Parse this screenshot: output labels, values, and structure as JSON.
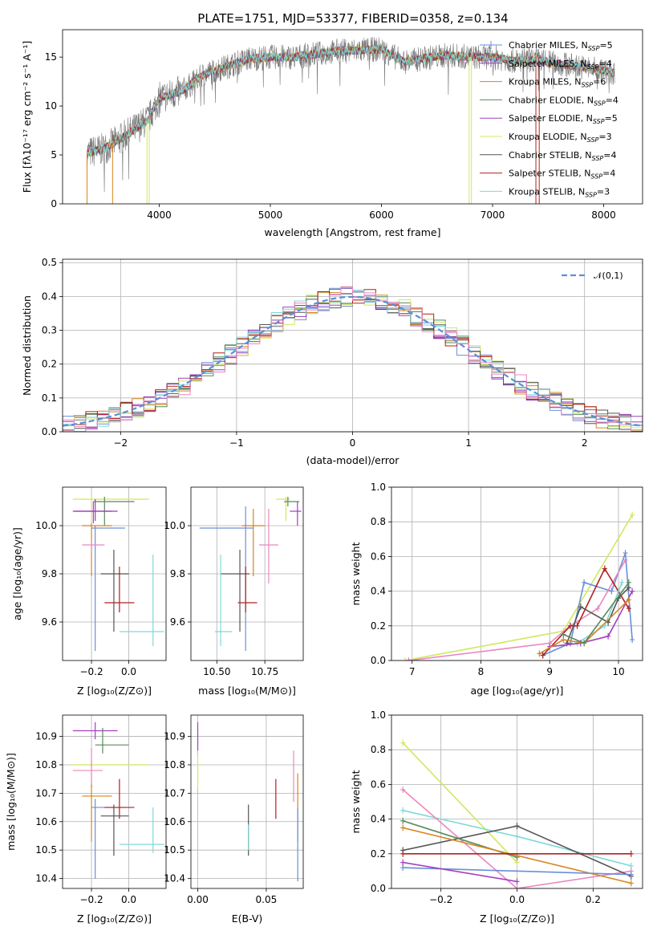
{
  "page_title": "PLATE=1751, MJD=53377, FIBERID=0358, z=0.134",
  "colors": {
    "Chabrier MILES": "#6a8fd8",
    "Salpeter MILES": "#9a3ab8",
    "Kroupa MILES": "#d88520",
    "Chabrier ELODIE": "#5a8a5a",
    "Salpeter ELODIE": "#a040c0",
    "Kroupa ELODIE": "#d0e860",
    "Chabrier STELIB": "#555555",
    "Salpeter STELIB": "#b02020",
    "Kroupa STELIB": "#80d8d8",
    "extra_pink": "#e888c0",
    "normal": "#5b8fd8"
  },
  "chart_data": [
    {
      "id": "spectrum",
      "type": "line",
      "title": "",
      "xlabel": "wavelength [Angstrom, rest frame]",
      "ylabel": "Flux [fλ10⁻¹⁷ erg cm⁻² s⁻¹ A⁻¹]",
      "xlim": [
        3130,
        8350
      ],
      "ylim": [
        0,
        17.8
      ],
      "xticks": [
        4000,
        5000,
        6000,
        7000,
        8000
      ],
      "yticks": [
        0,
        5,
        10,
        15
      ],
      "grid": false,
      "legend_position": "top-right",
      "continuum": {
        "x": [
          3350,
          3500,
          3700,
          3900,
          4000,
          4200,
          4400,
          4600,
          4800,
          5000,
          5200,
          5400,
          5600,
          5800,
          6000,
          6200,
          6400,
          6600,
          6800,
          7000,
          7200,
          7400,
          7600,
          7800,
          8000,
          8100
        ],
        "y": [
          5.2,
          5.6,
          7.0,
          8.6,
          10.8,
          11.5,
          13.2,
          14.0,
          14.8,
          15.0,
          15.0,
          15.3,
          15.6,
          15.7,
          15.8,
          14.5,
          14.9,
          15.2,
          15.0,
          15.0,
          14.6,
          14.7,
          14.3,
          14.0,
          13.6,
          13.4
        ]
      },
      "series": [
        {
          "name": "Chabrier MILES, N$_{SSP}$=5",
          "label_main": "Chabrier MILES, N",
          "sub": "SSP",
          "suffix": "=5",
          "key": "Chabrier MILES",
          "marker": "+"
        },
        {
          "name": "Salpeter MILES, N$_{SSP}$=4",
          "label_main": "Salpeter MILES, N",
          "sub": "SSP",
          "suffix": "=4",
          "key": "Salpeter MILES",
          "marker": "+"
        },
        {
          "name": "Kroupa MILES, N$_{SSP}$=6",
          "label_main": "Kroupa MILES, N",
          "sub": "SSP",
          "suffix": "=6",
          "key": "Kroupa MILES",
          "marker": ""
        },
        {
          "name": "Chabrier ELODIE, N$_{SSP}$=4",
          "label_main": "Chabrier ELODIE, N",
          "sub": "SSP",
          "suffix": "=4",
          "key": "Chabrier ELODIE",
          "marker": ""
        },
        {
          "name": "Salpeter ELODIE, N$_{SSP}$=5",
          "label_main": "Salpeter ELODIE, N",
          "sub": "SSP",
          "suffix": "=5",
          "key": "Salpeter ELODIE",
          "marker": ""
        },
        {
          "name": "Kroupa ELODIE, N$_{SSP}$=3",
          "label_main": "Kroupa ELODIE, N",
          "sub": "SSP",
          "suffix": "=3",
          "key": "Kroupa ELODIE",
          "marker": ""
        },
        {
          "name": "Chabrier STELIB, N$_{SSP}$=4",
          "label_main": "Chabrier STELIB, N",
          "sub": "SSP",
          "suffix": "=4",
          "key": "Chabrier STELIB",
          "marker": ""
        },
        {
          "name": "Salpeter STELIB, N$_{SSP}$=4",
          "label_main": "Salpeter STELIB, N",
          "sub": "SSP",
          "suffix": "=4",
          "key": "Salpeter STELIB",
          "marker": ""
        },
        {
          "name": "Kroupa STELIB, N$_{SSP}$=3",
          "label_main": "Kroupa STELIB, N",
          "sub": "SSP",
          "suffix": "=3",
          "key": "Kroupa STELIB",
          "marker": ""
        }
      ],
      "drops": [
        {
          "key": "Kroupa MILES",
          "x_start": 3350,
          "x_end": 3580
        },
        {
          "key": "Kroupa ELODIE",
          "x_start": 3890,
          "x_end": 3910
        },
        {
          "key": "Kroupa ELODIE",
          "x_start": 6790,
          "x_end": 6810
        },
        {
          "key": "Salpeter STELIB",
          "x_start": 7390,
          "x_end": 7420
        }
      ]
    },
    {
      "id": "residuals",
      "type": "histogram",
      "xlabel": "(data-model)/error",
      "ylabel": "Normed distribution",
      "xlim": [
        -2.5,
        2.5
      ],
      "ylim": [
        0,
        0.51
      ],
      "xticks": [
        -2,
        -1,
        0,
        1,
        2
      ],
      "yticks": [
        0.0,
        0.1,
        0.2,
        0.3,
        0.4,
        0.5
      ],
      "grid": true,
      "legend_position": "top-right",
      "normal_label": "𝒩(0,1)",
      "bin_width": 0.1
    },
    {
      "id": "age_vs_Z",
      "type": "errorbar",
      "xlabel": "Z [log₁₀(Z/Z⊙)]",
      "ylabel": "age  [log₁₀(age/yr)]",
      "xlim": [
        -0.355,
        0.2
      ],
      "ylim": [
        9.44,
        10.16
      ],
      "xticks": [
        -0.2,
        0.0
      ],
      "yticks": [
        9.6,
        9.8,
        10.0
      ],
      "grid": true,
      "points": [
        {
          "key": "Kroupa ELODIE",
          "x": -0.2,
          "xerr": [
            0.1,
            0.31
          ],
          "y": 10.11,
          "yerr": [
            0.09,
            0.01
          ]
        },
        {
          "key": "Chabrier ELODIE",
          "x": -0.13,
          "xerr": [
            0.06,
            0.16
          ],
          "y": 10.1,
          "yerr": [
            0.1,
            0.02
          ]
        },
        {
          "key": "Salpeter ELODIE",
          "x": -0.19,
          "xerr": [
            0.1,
            0.1
          ],
          "y": 10.06,
          "yerr": [
            0.05,
            0.04
          ]
        },
        {
          "key": "Salpeter MILES",
          "x": -0.18,
          "xerr": [
            0.12,
            0.12
          ],
          "y": 10.06,
          "yerr": [
            0.04,
            0.05
          ]
        },
        {
          "key": "Kroupa MILES",
          "x": -0.2,
          "xerr": [
            0.05,
            0.11
          ],
          "y": 10.0,
          "yerr": [
            0.21,
            0.01
          ]
        },
        {
          "key": "Chabrier MILES",
          "x": -0.18,
          "xerr": [
            0.02,
            0.16
          ],
          "y": 9.99,
          "yerr": [
            0.51,
            0.01
          ]
        },
        {
          "key": "extra_pink",
          "x": -0.2,
          "xerr": [
            0.05,
            0.07
          ],
          "y": 9.92,
          "yerr": [
            0.03,
            0.02
          ]
        },
        {
          "key": "Chabrier STELIB",
          "x": -0.08,
          "xerr": [
            0.07,
            0.08
          ],
          "y": 9.8,
          "yerr": [
            0.24,
            0.1
          ]
        },
        {
          "key": "Salpeter STELIB",
          "x": -0.05,
          "xerr": [
            0.08,
            0.08
          ],
          "y": 9.68,
          "yerr": [
            0.04,
            0.15
          ]
        },
        {
          "key": "Kroupa STELIB",
          "x": 0.13,
          "xerr": [
            0.18,
            0.06
          ],
          "y": 9.56,
          "yerr": [
            0.06,
            0.32
          ]
        }
      ]
    },
    {
      "id": "age_vs_mass",
      "type": "errorbar",
      "xlabel": "mass [log₁₀(M/M⊙)]",
      "ylabel": "",
      "xlim": [
        10.365,
        10.95
      ],
      "ylim": [
        9.44,
        10.16
      ],
      "xticks": [
        10.5,
        10.75
      ],
      "yticks": [
        9.6,
        9.8,
        10.0
      ],
      "grid": true,
      "points": [
        {
          "key": "Kroupa ELODIE",
          "x": 10.86,
          "xerr": [
            0.05,
            0.02
          ],
          "y": 10.11,
          "yerr": [
            0.09,
            0.01
          ]
        },
        {
          "key": "Chabrier ELODIE",
          "x": 10.87,
          "xerr": [
            0.02,
            0.06
          ],
          "y": 10.1,
          "yerr": [
            0.02,
            0.02
          ]
        },
        {
          "key": "Salpeter ELODIE",
          "x": 10.92,
          "xerr": [
            0.04,
            0.02
          ],
          "y": 10.06,
          "yerr": [
            0.06,
            0.04
          ]
        },
        {
          "key": "Kroupa MILES",
          "x": 10.69,
          "xerr": [
            0.06,
            0.06
          ],
          "y": 10.0,
          "yerr": [
            0.21,
            0.07
          ]
        },
        {
          "key": "Chabrier MILES",
          "x": 10.65,
          "xerr": [
            0.24,
            0.04
          ],
          "y": 9.99,
          "yerr": [
            0.51,
            0.09
          ]
        },
        {
          "key": "extra_pink",
          "x": 10.77,
          "xerr": [
            0.05,
            0.05
          ],
          "y": 9.92,
          "yerr": [
            0.16,
            0.15
          ]
        },
        {
          "key": "Chabrier STELIB",
          "x": 10.62,
          "xerr": [
            0.1,
            0.05
          ],
          "y": 9.8,
          "yerr": [
            0.24,
            0.1
          ]
        },
        {
          "key": "Salpeter STELIB",
          "x": 10.65,
          "xerr": [
            0.04,
            0.06
          ],
          "y": 9.68,
          "yerr": [
            0.04,
            0.15
          ]
        },
        {
          "key": "Kroupa STELIB",
          "x": 10.52,
          "xerr": [
            0.03,
            0.06
          ],
          "y": 9.56,
          "yerr": [
            0.06,
            0.32
          ]
        }
      ]
    },
    {
      "id": "weight_vs_age",
      "type": "line",
      "xlabel": "age  [log₁₀(age/yr)]",
      "ylabel": "mass weight",
      "xlim": [
        6.7,
        10.35
      ],
      "ylim": [
        0.0,
        1.0
      ],
      "xticks": [
        7,
        8,
        9,
        10
      ],
      "yticks": [
        0.0,
        0.2,
        0.4,
        0.6,
        0.8,
        1.0
      ],
      "grid": true,
      "series": [
        {
          "key": "Kroupa ELODIE",
          "x": [
            6.9,
            9.2,
            10.2
          ],
          "y": [
            0.0,
            0.17,
            0.84
          ]
        },
        {
          "key": "Chabrier MILES",
          "x": [
            8.9,
            9.3,
            9.5,
            9.9,
            10.1,
            10.2
          ],
          "y": [
            0.03,
            0.1,
            0.45,
            0.4,
            0.62,
            0.12
          ]
        },
        {
          "key": "extra_pink",
          "x": [
            6.95,
            9.0,
            9.3,
            9.7,
            10.1
          ],
          "y": [
            0.0,
            0.1,
            0.2,
            0.3,
            0.58
          ]
        },
        {
          "key": "Salpeter STELIB",
          "x": [
            8.9,
            9.3,
            9.4,
            9.8,
            10.15
          ],
          "y": [
            0.03,
            0.2,
            0.2,
            0.53,
            0.3
          ]
        },
        {
          "key": "Chabrier STELIB",
          "x": [
            9.25,
            9.45,
            9.85,
            10.0,
            10.15
          ],
          "y": [
            0.1,
            0.31,
            0.22,
            0.36,
            0.42
          ]
        },
        {
          "key": "Kroupa STELIB",
          "x": [
            9.4,
            9.8,
            10.05
          ],
          "y": [
            0.1,
            0.2,
            0.45
          ]
        },
        {
          "key": "Salpeter ELODIE",
          "x": [
            9.0,
            9.45,
            9.85,
            10.2
          ],
          "y": [
            0.08,
            0.1,
            0.14,
            0.4
          ]
        },
        {
          "key": "Kroupa MILES",
          "x": [
            8.85,
            9.2,
            9.5,
            10.15
          ],
          "y": [
            0.04,
            0.12,
            0.1,
            0.35
          ]
        },
        {
          "key": "Chabrier ELODIE",
          "x": [
            9.2,
            9.5,
            10.15
          ],
          "y": [
            0.15,
            0.1,
            0.45
          ]
        }
      ]
    },
    {
      "id": "mass_vs_Z",
      "type": "errorbar",
      "xlabel": "Z [log₁₀(Z/Z⊙)]",
      "ylabel": "mass [log₁₀(M/M⊙)]",
      "xlim": [
        -0.355,
        0.2
      ],
      "ylim": [
        10.365,
        10.975
      ],
      "xticks": [
        -0.2,
        0.0
      ],
      "yticks": [
        10.4,
        10.5,
        10.6,
        10.7,
        10.8,
        10.9
      ],
      "grid": true,
      "points": [
        {
          "key": "Salpeter ELODIE",
          "x": -0.18,
          "xerr": [
            0.12,
            0.12
          ],
          "y": 10.92,
          "yerr": [
            0.03,
            0.03
          ]
        },
        {
          "key": "Chabrier ELODIE",
          "x": -0.14,
          "xerr": [
            0.04,
            0.14
          ],
          "y": 10.87,
          "yerr": [
            0.03,
            0.06
          ]
        },
        {
          "key": "Kroupa ELODIE",
          "x": -0.2,
          "xerr": [
            0.11,
            0.31
          ],
          "y": 10.8,
          "yerr": [
            0.08,
            0.02
          ]
        },
        {
          "key": "extra_pink",
          "x": -0.2,
          "xerr": [
            0.1,
            0.06
          ],
          "y": 10.78,
          "yerr": [
            0.06,
            0.08
          ]
        },
        {
          "key": "Kroupa MILES",
          "x": -0.2,
          "xerr": [
            0.05,
            0.11
          ],
          "y": 10.69,
          "yerr": [
            0.16,
            0.04
          ]
        },
        {
          "key": "Chabrier MILES",
          "x": -0.18,
          "xerr": [
            0.02,
            0.16
          ],
          "y": 10.65,
          "yerr": [
            0.25,
            0.03
          ]
        },
        {
          "key": "Salpeter STELIB",
          "x": -0.05,
          "xerr": [
            0.08,
            0.08
          ],
          "y": 10.65,
          "yerr": [
            0.04,
            0.1
          ]
        },
        {
          "key": "Chabrier STELIB",
          "x": -0.08,
          "xerr": [
            0.07,
            0.08
          ],
          "y": 10.62,
          "yerr": [
            0.14,
            0.04
          ]
        },
        {
          "key": "Kroupa STELIB",
          "x": 0.13,
          "xerr": [
            0.18,
            0.06
          ],
          "y": 10.52,
          "yerr": [
            0.03,
            0.13
          ]
        }
      ]
    },
    {
      "id": "mass_vs_EBV",
      "type": "errorbar",
      "xlabel": "E(B-V)",
      "ylabel": "",
      "xlim": [
        -0.005,
        0.077
      ],
      "ylim": [
        10.365,
        10.975
      ],
      "xticks": [
        0.0,
        0.05
      ],
      "yticks": [
        10.4,
        10.5,
        10.6,
        10.7,
        10.8,
        10.9
      ],
      "grid": true,
      "points": [
        {
          "key": "Salpeter ELODIE",
          "x": 0.0,
          "y": 10.9,
          "yerr": [
            0.05,
            0.05
          ]
        },
        {
          "key": "Kroupa ELODIE",
          "x": 0.0,
          "y": 10.8,
          "yerr": [
            0.08,
            0.03
          ]
        },
        {
          "key": "Chabrier STELIB",
          "x": 0.037,
          "y": 10.57,
          "yerr": [
            0.09,
            0.09
          ]
        },
        {
          "key": "Kroupa STELIB",
          "x": 0.037,
          "y": 10.55,
          "yerr": [
            0.05,
            0.04
          ]
        },
        {
          "key": "Salpeter STELIB",
          "x": 0.057,
          "y": 10.67,
          "yerr": [
            0.06,
            0.08
          ]
        },
        {
          "key": "extra_pink",
          "x": 0.07,
          "y": 10.75,
          "yerr": [
            0.08,
            0.1
          ]
        },
        {
          "key": "Kroupa MILES",
          "x": 0.073,
          "y": 10.65,
          "yerr": [
            0.12,
            0.12
          ]
        },
        {
          "key": "Chabrier MILES",
          "x": 0.073,
          "y": 10.55,
          "yerr": [
            0.16,
            0.1
          ]
        }
      ]
    },
    {
      "id": "weight_vs_Z",
      "type": "line",
      "xlabel": "Z [log₁₀(Z/Z⊙)]",
      "ylabel": "mass weight",
      "xlim": [
        -0.33,
        0.33
      ],
      "ylim": [
        0.0,
        1.0
      ],
      "xticks": [
        -0.2,
        0.0,
        0.2
      ],
      "yticks": [
        0.0,
        0.2,
        0.4,
        0.6,
        0.8,
        1.0
      ],
      "grid": true,
      "series": [
        {
          "key": "Kroupa ELODIE",
          "x": [
            -0.3,
            0.0
          ],
          "y": [
            0.84,
            0.15
          ]
        },
        {
          "key": "Kroupa STELIB",
          "x": [
            -0.3,
            0.0,
            0.3
          ],
          "y": [
            0.45,
            0.3,
            0.13
          ]
        },
        {
          "key": "extra_pink",
          "x": [
            -0.3,
            0.0,
            0.3
          ],
          "y": [
            0.57,
            0.0,
            0.1
          ]
        },
        {
          "key": "Chabrier STELIB",
          "x": [
            -0.3,
            0.0,
            0.3
          ],
          "y": [
            0.22,
            0.36,
            0.07
          ]
        },
        {
          "key": "Chabrier ELODIE",
          "x": [
            -0.3,
            0.0
          ],
          "y": [
            0.39,
            0.18
          ]
        },
        {
          "key": "Kroupa MILES",
          "x": [
            -0.3,
            0.3
          ],
          "y": [
            0.35,
            0.03
          ]
        },
        {
          "key": "Salpeter STELIB",
          "x": [
            -0.3,
            0.3
          ],
          "y": [
            0.2,
            0.2
          ]
        },
        {
          "key": "Chabrier MILES",
          "x": [
            -0.3,
            0.3
          ],
          "y": [
            0.12,
            0.08
          ]
        },
        {
          "key": "Salpeter ELODIE",
          "x": [
            -0.3,
            0.0
          ],
          "y": [
            0.15,
            0.04
          ]
        }
      ]
    }
  ]
}
